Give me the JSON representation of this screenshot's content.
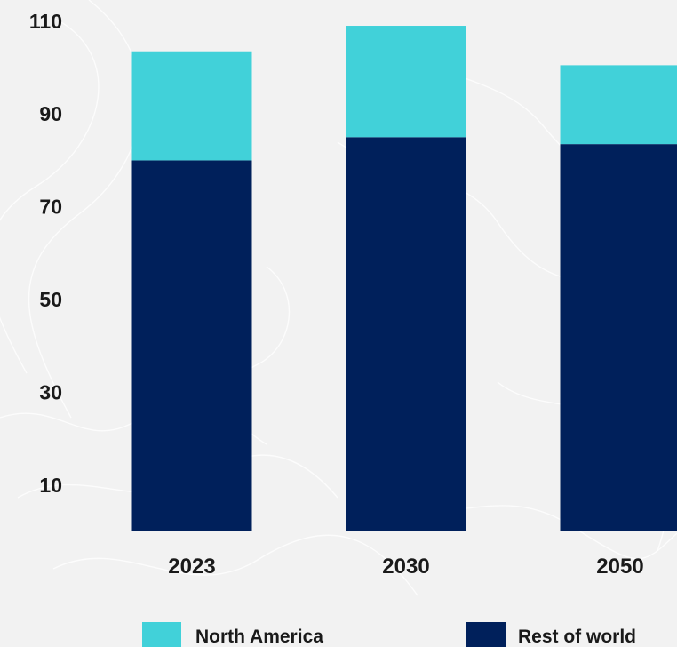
{
  "chart_data": {
    "type": "bar",
    "stacked": true,
    "categories": [
      "2023",
      "2030",
      "2050"
    ],
    "series": [
      {
        "name": "Rest of world",
        "color": "#00205b",
        "values": [
          80,
          85,
          83.5
        ]
      },
      {
        "name": "North America",
        "color": "#41d1d9",
        "values": [
          23.5,
          24,
          17
        ]
      }
    ],
    "yticks": [
      10,
      30,
      50,
      70,
      90,
      110
    ],
    "ylim": [
      0,
      110
    ],
    "grid": false,
    "legend": {
      "position": "bottom",
      "order": [
        "North America",
        "Rest of world"
      ]
    },
    "background_color": "#f2f2f2",
    "background_pattern": "topographic-contour-lines"
  }
}
